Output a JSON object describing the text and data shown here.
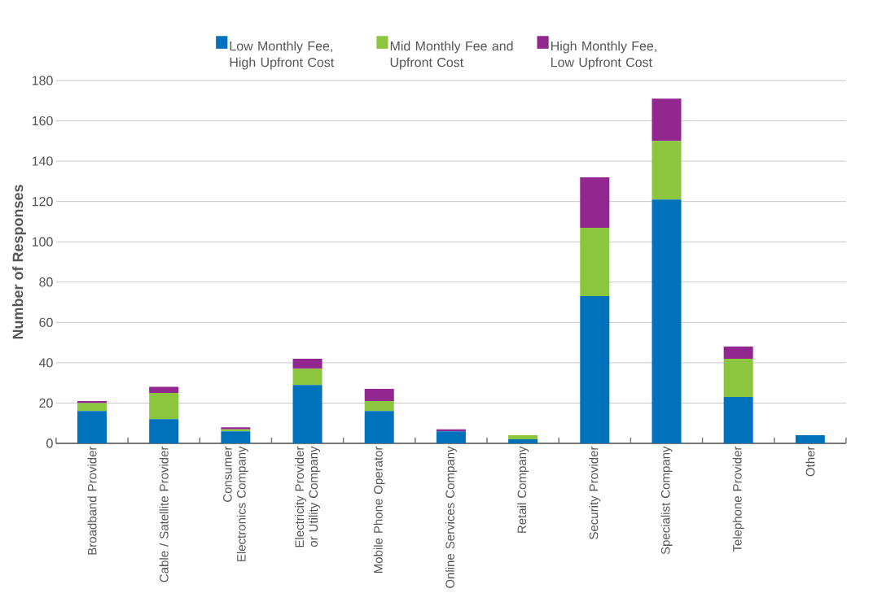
{
  "chart_data": {
    "type": "bar",
    "stacked": true,
    "ylabel": "Number of Responses",
    "categories": [
      "Broadband Provider",
      "Cable / Satellite Provider",
      "Consumer Electronics Company",
      "Electricity Provider or Utility Company",
      "Mobile Phone Operator",
      "Online Services Company",
      "Retail Company",
      "Security Provider",
      "Specialist Company",
      "Telephone Provider",
      "Other"
    ],
    "series": [
      {
        "name": "Low Monthly Fee, High Upfront Cost",
        "color": "#0071bb",
        "values": [
          16,
          12,
          6,
          29,
          16,
          6,
          2,
          73,
          121,
          23,
          4
        ]
      },
      {
        "name": "Mid Monthly Fee and Upfront Cost",
        "color": "#8cc63f",
        "values": [
          4,
          13,
          1,
          8,
          5,
          0,
          2,
          34,
          29,
          19,
          0
        ]
      },
      {
        "name": "High Monthly Fee, Low Upfront Cost",
        "color": "#92278f",
        "values": [
          1,
          3,
          1,
          5,
          6,
          1,
          0,
          25,
          21,
          6,
          0
        ]
      }
    ],
    "ylim": [
      0,
      180
    ],
    "yticks": [
      0,
      20,
      40,
      60,
      80,
      100,
      120,
      140,
      160,
      180
    ],
    "grid": "y",
    "legend": "top"
  }
}
